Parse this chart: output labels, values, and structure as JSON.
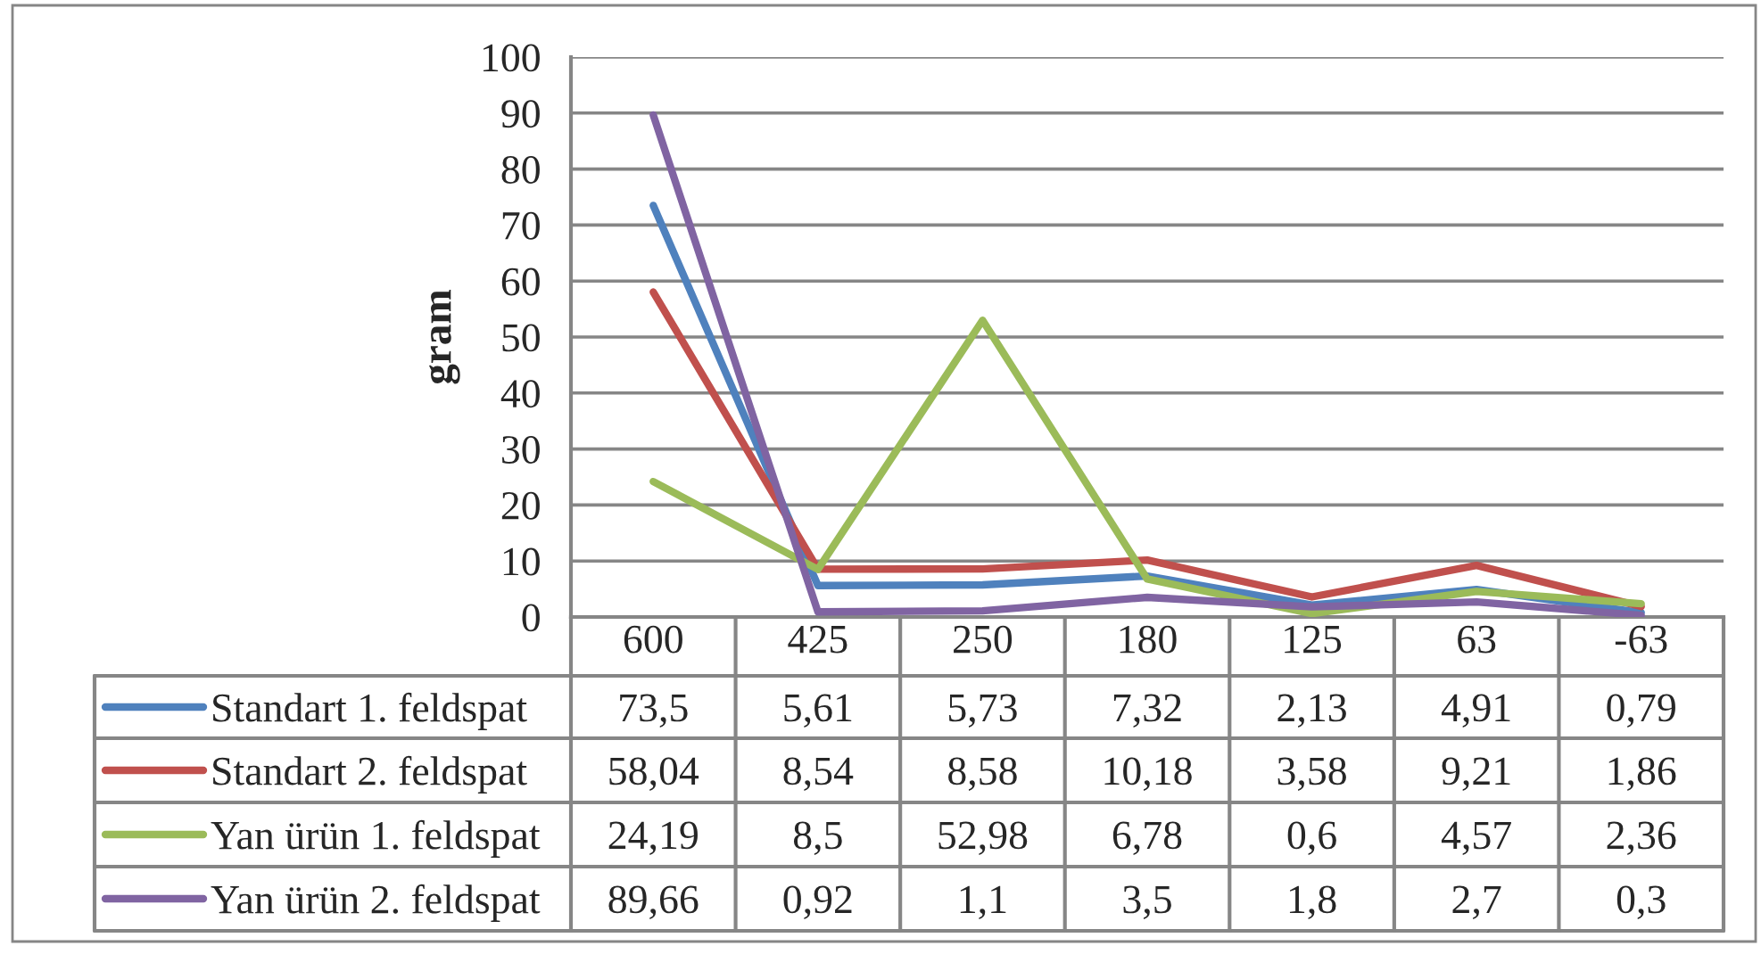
{
  "chart_data": {
    "type": "line",
    "ylabel": "gram",
    "categories": [
      "600",
      "425",
      "250",
      "180",
      "125",
      "63",
      "-63"
    ],
    "series": [
      {
        "name": "Standart 1. feldspat",
        "color": "#4f81bd",
        "values": [
          73.5,
          5.61,
          5.73,
          7.32,
          2.13,
          4.91,
          0.79
        ],
        "value_labels": [
          "73,5",
          "5,61",
          "5,73",
          "7,32",
          "2,13",
          "4,91",
          "0,79"
        ]
      },
      {
        "name": "Standart 2. feldspat",
        "color": "#c0504d",
        "values": [
          58.04,
          8.54,
          8.58,
          10.18,
          3.58,
          9.21,
          1.86
        ],
        "value_labels": [
          "58,04",
          "8,54",
          "8,58",
          "10,18",
          "3,58",
          "9,21",
          "1,86"
        ]
      },
      {
        "name": "Yan ürün 1. feldspat",
        "color": "#9bbb59",
        "values": [
          24.19,
          8.5,
          52.98,
          6.78,
          0.6,
          4.57,
          2.36
        ],
        "value_labels": [
          "24,19",
          "8,5",
          "52,98",
          "6,78",
          "0,6",
          "4,57",
          "2,36"
        ]
      },
      {
        "name": "Yan ürün 2. feldspat",
        "color": "#8064a2",
        "values": [
          89.66,
          0.92,
          1.1,
          3.5,
          1.8,
          2.7,
          0.3
        ],
        "value_labels": [
          "89,66",
          "0,92",
          "1,1",
          "3,5",
          "1,8",
          "2,7",
          "0,3"
        ]
      }
    ],
    "ylim": [
      0,
      100
    ],
    "yticks": [
      0,
      10,
      20,
      30,
      40,
      50,
      60,
      70,
      80,
      90,
      100
    ],
    "grid": "y",
    "legend": "bottom",
    "line_style": "solid"
  }
}
